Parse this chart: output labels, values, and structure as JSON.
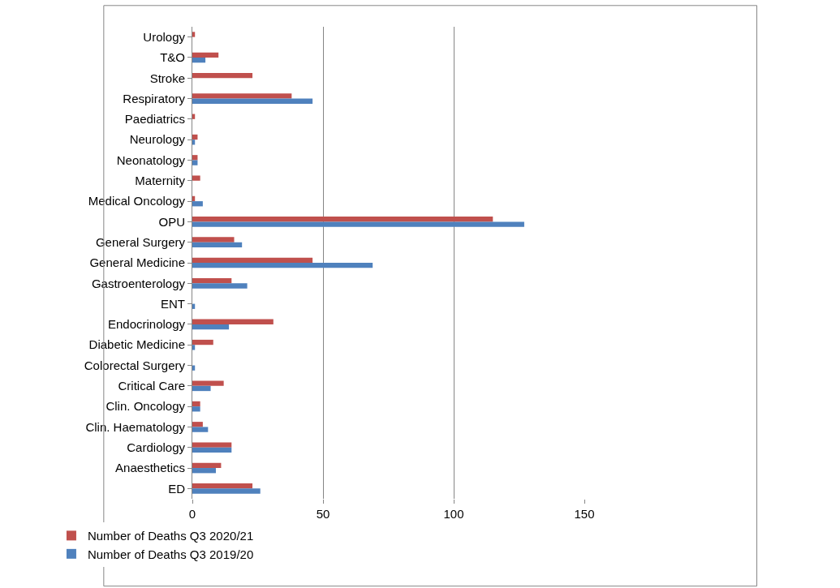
{
  "chart_data": {
    "type": "bar",
    "orientation": "horizontal",
    "categories": [
      "Urology",
      "T&O",
      "Stroke",
      "Respiratory",
      "Paediatrics",
      "Neurology",
      "Neonatology",
      "Maternity",
      "Medical Oncology",
      "OPU",
      "General Surgery",
      "General Medicine",
      "Gastroenterology",
      "ENT",
      "Endocrinology",
      "Diabetic Medicine",
      "Colorectal Surgery",
      "Critical Care",
      "Clin. Oncology",
      "Clin. Haematology",
      "Cardiology",
      "Anaesthetics",
      "ED"
    ],
    "series": [
      {
        "name": "Number of Deaths Q3 2020/21",
        "color": "#c0504d",
        "values": [
          1,
          10,
          23,
          38,
          1,
          2,
          2,
          3,
          1,
          115,
          16,
          46,
          15,
          null,
          31,
          8,
          null,
          12,
          3,
          4,
          15,
          11,
          23
        ]
      },
      {
        "name": "Number of Deaths Q3 2019/20",
        "color": "#4f81bd",
        "values": [
          null,
          5,
          null,
          46,
          null,
          1,
          2,
          null,
          4,
          127,
          19,
          69,
          21,
          1,
          14,
          1,
          1,
          7,
          3,
          6,
          15,
          9,
          26
        ]
      }
    ],
    "xlim": [
      0,
      150
    ],
    "xticks": [
      0,
      50,
      100,
      150
    ],
    "grid": "x",
    "legend": "bottom left"
  }
}
